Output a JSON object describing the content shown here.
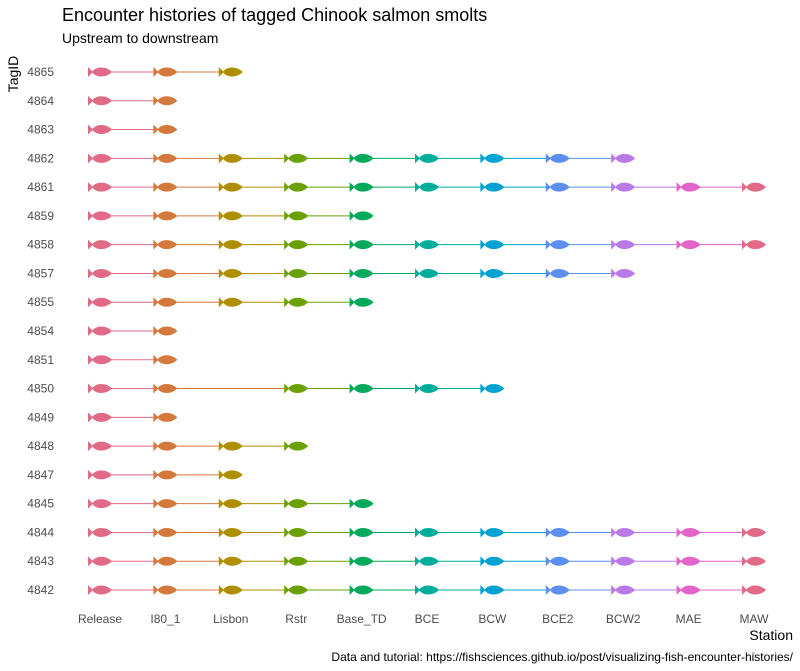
{
  "chart_data": {
    "type": "scatter",
    "title": "Encounter histories of tagged Chinook salmon smolts",
    "subtitle": "Upstream to downstream",
    "xlabel": "Station",
    "ylabel": "TagID",
    "caption": "Data and tutorial: https://fishsciences.github.io/post/visualizing-fish-encounter-histories/",
    "grid": false,
    "legend": "none",
    "stations": [
      "Release",
      "I80_1",
      "Lisbon",
      "Rstr",
      "Base_TD",
      "BCE",
      "BCW",
      "BCE2",
      "BCW2",
      "MAE",
      "MAW"
    ],
    "station_colors": [
      "#E16A86",
      "#D3793C",
      "#AE8F00",
      "#6AA100",
      "#00AA5A",
      "#00AD9A",
      "#00A2D3",
      "#5D8EF0",
      "#B97AE8",
      "#E364C8",
      "#E16A86"
    ],
    "tags": [
      {
        "id": "4865",
        "stations": [
          "Release",
          "I80_1",
          "Lisbon"
        ]
      },
      {
        "id": "4864",
        "stations": [
          "Release",
          "I80_1"
        ]
      },
      {
        "id": "4863",
        "stations": [
          "Release",
          "I80_1"
        ]
      },
      {
        "id": "4862",
        "stations": [
          "Release",
          "I80_1",
          "Lisbon",
          "Rstr",
          "Base_TD",
          "BCE",
          "BCW",
          "BCE2",
          "BCW2"
        ]
      },
      {
        "id": "4861",
        "stations": [
          "Release",
          "I80_1",
          "Lisbon",
          "Rstr",
          "Base_TD",
          "BCE",
          "BCW",
          "BCE2",
          "BCW2",
          "MAE",
          "MAW"
        ]
      },
      {
        "id": "4859",
        "stations": [
          "Release",
          "I80_1",
          "Lisbon",
          "Rstr",
          "Base_TD"
        ]
      },
      {
        "id": "4858",
        "stations": [
          "Release",
          "I80_1",
          "Lisbon",
          "Rstr",
          "Base_TD",
          "BCE",
          "BCW",
          "BCE2",
          "BCW2",
          "MAE",
          "MAW"
        ]
      },
      {
        "id": "4857",
        "stations": [
          "Release",
          "I80_1",
          "Lisbon",
          "Rstr",
          "Base_TD",
          "BCE",
          "BCW",
          "BCE2",
          "BCW2"
        ]
      },
      {
        "id": "4855",
        "stations": [
          "Release",
          "I80_1",
          "Lisbon",
          "Rstr",
          "Base_TD"
        ]
      },
      {
        "id": "4854",
        "stations": [
          "Release",
          "I80_1"
        ]
      },
      {
        "id": "4851",
        "stations": [
          "Release",
          "I80_1"
        ]
      },
      {
        "id": "4850",
        "stations": [
          "Release",
          "I80_1",
          "Rstr",
          "Base_TD",
          "BCE",
          "BCW"
        ]
      },
      {
        "id": "4849",
        "stations": [
          "Release",
          "I80_1"
        ]
      },
      {
        "id": "4848",
        "stations": [
          "Release",
          "I80_1",
          "Lisbon",
          "Rstr"
        ]
      },
      {
        "id": "4847",
        "stations": [
          "Release",
          "I80_1",
          "Lisbon"
        ]
      },
      {
        "id": "4845",
        "stations": [
          "Release",
          "I80_1",
          "Lisbon",
          "Rstr",
          "Base_TD"
        ]
      },
      {
        "id": "4844",
        "stations": [
          "Release",
          "I80_1",
          "Lisbon",
          "Rstr",
          "Base_TD",
          "BCE",
          "BCW",
          "BCE2",
          "BCW2",
          "MAE",
          "MAW"
        ]
      },
      {
        "id": "4843",
        "stations": [
          "Release",
          "I80_1",
          "Lisbon",
          "Rstr",
          "Base_TD",
          "BCE",
          "BCW",
          "BCE2",
          "BCW2",
          "MAE",
          "MAW"
        ]
      },
      {
        "id": "4842",
        "stations": [
          "Release",
          "I80_1",
          "Lisbon",
          "Rstr",
          "Base_TD",
          "BCE",
          "BCW",
          "BCE2",
          "BCW2",
          "MAE",
          "MAW"
        ]
      }
    ]
  }
}
